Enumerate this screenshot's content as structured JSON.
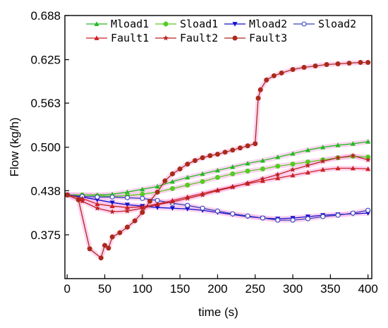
{
  "chart_data": {
    "type": "line",
    "title": "",
    "xlabel": "time (s)",
    "ylabel": "Flow (kg/h)",
    "xlim": [
      -3,
      405
    ],
    "ylim": [
      0.3125,
      0.688
    ],
    "xticks": [
      0,
      50,
      100,
      150,
      200,
      250,
      300,
      350,
      400
    ],
    "xtick_labels": [
      "0",
      "50",
      "100",
      "150",
      "200",
      "250",
      "300",
      "350",
      "400"
    ],
    "yticks": [
      0.375,
      0.438,
      0.5,
      0.563,
      0.625,
      0.688
    ],
    "ytick_labels": [
      "0.375",
      "0.438",
      "0.500",
      "0.563",
      "0.625",
      "0.688"
    ],
    "grid": false,
    "legend_position": "top",
    "series": [
      {
        "name": "Mload1",
        "color": "#22bb22",
        "marker": "triangle-up",
        "x": [
          0,
          20,
          40,
          60,
          80,
          100,
          120,
          140,
          160,
          180,
          200,
          220,
          240,
          260,
          280,
          300,
          320,
          340,
          360,
          380,
          400
        ],
        "y": [
          0.432,
          0.432,
          0.432,
          0.433,
          0.436,
          0.44,
          0.444,
          0.451,
          0.457,
          0.462,
          0.467,
          0.472,
          0.477,
          0.481,
          0.486,
          0.491,
          0.496,
          0.5,
          0.503,
          0.505,
          0.508
        ]
      },
      {
        "name": "Sload1",
        "color": "#55cc22",
        "marker": "circle",
        "x": [
          0,
          20,
          40,
          60,
          80,
          100,
          120,
          140,
          160,
          180,
          200,
          220,
          240,
          260,
          280,
          300,
          320,
          340,
          360,
          380,
          400
        ],
        "y": [
          0.432,
          0.432,
          0.431,
          0.43,
          0.431,
          0.433,
          0.436,
          0.441,
          0.446,
          0.451,
          0.457,
          0.462,
          0.466,
          0.469,
          0.473,
          0.476,
          0.479,
          0.482,
          0.485,
          0.487,
          0.486
        ]
      },
      {
        "name": "Mload2",
        "color": "#1111cc",
        "marker": "triangle-down",
        "x": [
          0,
          20,
          40,
          60,
          80,
          100,
          120,
          140,
          160,
          180,
          200,
          220,
          240,
          260,
          280,
          300,
          320,
          340,
          360,
          380,
          400
        ],
        "y": [
          0.432,
          0.429,
          0.425,
          0.421,
          0.418,
          0.416,
          0.414,
          0.413,
          0.412,
          0.41,
          0.407,
          0.404,
          0.401,
          0.399,
          0.398,
          0.399,
          0.401,
          0.403,
          0.404,
          0.405,
          0.406
        ]
      },
      {
        "name": "Sload2",
        "color": "#3344bb",
        "marker": "circle-open",
        "x": [
          0,
          20,
          40,
          60,
          80,
          100,
          120,
          140,
          160,
          180,
          200,
          220,
          240,
          260,
          280,
          300,
          320,
          340,
          360,
          380,
          400
        ],
        "y": [
          0.432,
          0.43,
          0.429,
          0.429,
          0.428,
          0.427,
          0.424,
          0.42,
          0.417,
          0.413,
          0.409,
          0.405,
          0.402,
          0.399,
          0.396,
          0.396,
          0.398,
          0.401,
          0.403,
          0.406,
          0.41
        ]
      },
      {
        "name": "Fault1",
        "color": "#cc2222",
        "marker": "triangle-up",
        "x": [
          0,
          20,
          40,
          60,
          80,
          100,
          120,
          140,
          160,
          180,
          200,
          220,
          240,
          260,
          280,
          300,
          320,
          340,
          360,
          380,
          400
        ],
        "y": [
          0.432,
          0.427,
          0.419,
          0.416,
          0.414,
          0.415,
          0.419,
          0.424,
          0.429,
          0.434,
          0.439,
          0.444,
          0.448,
          0.452,
          0.456,
          0.46,
          0.464,
          0.468,
          0.47,
          0.47,
          0.469
        ]
      },
      {
        "name": "Fault2",
        "color": "#bb2222",
        "marker": "star",
        "x": [
          0,
          20,
          40,
          60,
          80,
          100,
          120,
          140,
          160,
          180,
          200,
          220,
          240,
          260,
          280,
          300,
          320,
          340,
          360,
          380,
          400
        ],
        "y": [
          0.432,
          0.423,
          0.413,
          0.408,
          0.409,
          0.413,
          0.418,
          0.422,
          0.427,
          0.432,
          0.438,
          0.443,
          0.449,
          0.455,
          0.461,
          0.468,
          0.474,
          0.48,
          0.485,
          0.488,
          0.482
        ]
      },
      {
        "name": "Fault3",
        "color": "#aa2a1a",
        "marker": "circle",
        "x": [
          0,
          15,
          30,
          45,
          50,
          55,
          60,
          70,
          80,
          90,
          100,
          110,
          120,
          130,
          140,
          150,
          160,
          170,
          180,
          190,
          200,
          210,
          220,
          230,
          240,
          250,
          254,
          257,
          265,
          275,
          285,
          300,
          315,
          330,
          345,
          360,
          375,
          390,
          400
        ],
        "y": [
          0.432,
          0.425,
          0.355,
          0.342,
          0.36,
          0.356,
          0.372,
          0.378,
          0.386,
          0.395,
          0.407,
          0.423,
          0.436,
          0.452,
          0.462,
          0.469,
          0.476,
          0.481,
          0.485,
          0.488,
          0.49,
          0.493,
          0.496,
          0.499,
          0.502,
          0.505,
          0.57,
          0.582,
          0.596,
          0.602,
          0.606,
          0.611,
          0.614,
          0.616,
          0.618,
          0.619,
          0.62,
          0.621,
          0.621
        ]
      }
    ]
  }
}
